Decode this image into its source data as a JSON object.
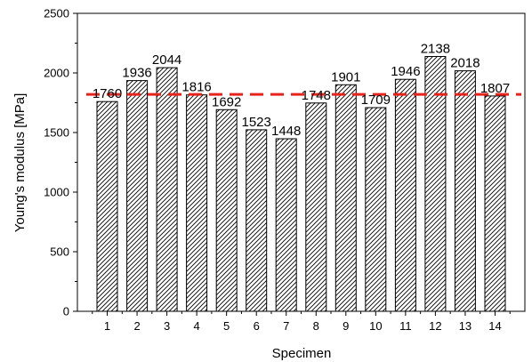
{
  "chart_data": {
    "type": "bar",
    "categories": [
      "1",
      "2",
      "3",
      "4",
      "5",
      "6",
      "7",
      "8",
      "9",
      "10",
      "11",
      "12",
      "13",
      "14"
    ],
    "values": [
      1760,
      1936,
      2044,
      1816,
      1692,
      1523,
      1448,
      1748,
      1901,
      1709,
      1946,
      2138,
      2018,
      1807
    ],
    "data_labels": [
      "1760",
      "1936",
      "2044",
      "1816",
      "1692",
      "1523",
      "1448",
      "1748",
      "1901",
      "1709",
      "1946",
      "2138",
      "2018",
      "1807"
    ],
    "reference_line": {
      "value": 1820,
      "style": "dashed",
      "color": "#e8231c"
    },
    "xlabel": "Specimen",
    "ylabel": "Young's modulus [MPa]",
    "ylim": [
      0,
      2500
    ],
    "yticks": [
      "0",
      "500",
      "1000",
      "1500",
      "2000",
      "2500"
    ],
    "bar_fill": "hatched",
    "grid": false,
    "legend": false
  }
}
